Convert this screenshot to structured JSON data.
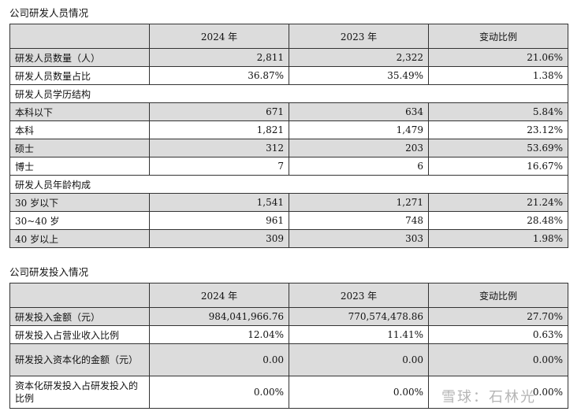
{
  "personnel": {
    "title": "公司研发人员情况",
    "headers": [
      "",
      "2024 年",
      "2023 年",
      "变动比例"
    ],
    "rows": [
      {
        "label": "研发人员数量（人）",
        "v2024": "2,811",
        "v2023": "2,322",
        "change": "21.06%",
        "kind": "shade"
      },
      {
        "label": "研发人员数量占比",
        "v2024": "36.87%",
        "v2023": "35.49%",
        "change": "1.38%",
        "kind": "plain"
      },
      {
        "label": "研发人员学历结构",
        "v2024": "",
        "v2023": "",
        "change": "",
        "kind": "group"
      },
      {
        "label": "本科以下",
        "v2024": "671",
        "v2023": "634",
        "change": "5.84%",
        "kind": "shade"
      },
      {
        "label": "本科",
        "v2024": "1,821",
        "v2023": "1,479",
        "change": "23.12%",
        "kind": "plain"
      },
      {
        "label": "硕士",
        "v2024": "312",
        "v2023": "203",
        "change": "53.69%",
        "kind": "shade"
      },
      {
        "label": "博士",
        "v2024": "7",
        "v2023": "6",
        "change": "16.67%",
        "kind": "plain"
      },
      {
        "label": "研发人员年龄构成",
        "v2024": "",
        "v2023": "",
        "change": "",
        "kind": "group"
      },
      {
        "label": "30 岁以下",
        "v2024": "1,541",
        "v2023": "1,271",
        "change": "21.24%",
        "kind": "shade"
      },
      {
        "label": "30~40 岁",
        "v2024": "961",
        "v2023": "748",
        "change": "28.48%",
        "kind": "plain"
      },
      {
        "label": "40 岁以上",
        "v2024": "309",
        "v2023": "303",
        "change": "1.98%",
        "kind": "shade"
      }
    ]
  },
  "investment": {
    "title": "公司研发投入情况",
    "headers": [
      "",
      "2024 年",
      "2023 年",
      "变动比例"
    ],
    "rows": [
      {
        "label": "研发投入金额（元）",
        "v2024": "984,041,966.76",
        "v2023": "770,574,478.86",
        "change": "27.70%",
        "kind": "shade"
      },
      {
        "label": "研发投入占营业收入比例",
        "v2024": "12.04%",
        "v2023": "11.41%",
        "change": "0.63%",
        "kind": "plain"
      },
      {
        "label": "研发投入资本化的金额（元）",
        "v2024": "0.00",
        "v2023": "0.00",
        "change": "0.00%",
        "kind": "shade"
      },
      {
        "label": "资本化研发投入占研发投入的比例",
        "v2024": "0.00%",
        "v2023": "0.00%",
        "change": "0.00%",
        "kind": "plain"
      }
    ]
  },
  "watermark": "雪球：石林光"
}
